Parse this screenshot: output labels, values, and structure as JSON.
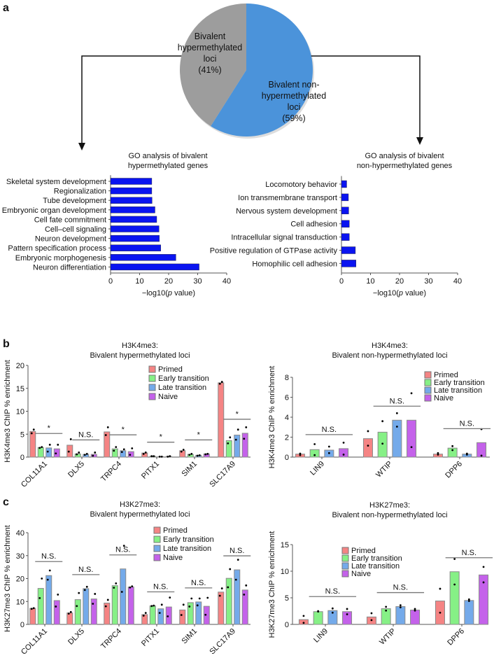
{
  "panel_labels": {
    "a": "a",
    "b": "b",
    "c": "c"
  },
  "chart_data": [
    {
      "type": "pie",
      "slices": [
        {
          "label_lines": [
            "Bivalent",
            "hypermethylated",
            "loci",
            "(41%)"
          ],
          "value": 41,
          "color": "#9d9d9d"
        },
        {
          "label_lines": [
            "Bivalent non-",
            "hypermethylated",
            "loci",
            "(59%)"
          ],
          "value": 59,
          "color": "#4b93da"
        }
      ]
    },
    {
      "type": "bar",
      "orientation": "horizontal",
      "title_lines": [
        "GO analysis of bivalent",
        "hypermethylated genes"
      ],
      "categories": [
        "Skeletal system development",
        "Regionalization",
        "Tube development",
        "Embryonic organ development",
        "Cell fate commitment",
        "Cell–cell signaling",
        "Neuron development",
        "Pattern specification process",
        "Embryonic morphogenesis",
        "Neuron differentiation"
      ],
      "values": [
        14.2,
        14.2,
        14.3,
        15.3,
        15.9,
        16.7,
        16.8,
        17.3,
        22.5,
        30.5
      ],
      "xlabel_parts": [
        "−log10(",
        "p",
        " value)"
      ],
      "xlim": [
        0,
        40
      ],
      "xticks": [
        "0",
        "10",
        "20",
        "30",
        "40"
      ],
      "color": "#0a14f0"
    },
    {
      "type": "bar",
      "orientation": "horizontal",
      "title_lines": [
        "GO analysis of bivalent",
        "non-hypermethylated genes"
      ],
      "categories": [
        "Locomotory behavior",
        "Ion transmembrane transport",
        "Nervous system development",
        "Cell adhesion",
        "Intracellular signal transduction",
        "Positive regulation of GTPase activity",
        "Homophilic cell adhesion"
      ],
      "values": [
        1.8,
        2.4,
        2.5,
        2.7,
        2.7,
        4.8,
        5.0
      ],
      "xlabel_parts": [
        "−log10(",
        "p",
        " value)"
      ],
      "xlim": [
        0,
        40
      ],
      "xticks": [
        "0",
        "10",
        "20",
        "30",
        "40"
      ],
      "color": "#0a14f0"
    },
    {
      "type": "bar",
      "title_lines": [
        "H3K4me3:",
        "Bivalent hypermethylated loci"
      ],
      "ylabel": "H3K4me3 ChIP % enrichment",
      "ylim": [
        0,
        20
      ],
      "yticks": [
        "0",
        "5",
        "10",
        "15",
        "20"
      ],
      "categories": [
        "COL11A1",
        "DLX5",
        "TRPC4",
        "PITX1",
        "SIM1",
        "SLC17A9"
      ],
      "significance": [
        "*",
        "N.S.",
        "*",
        "*",
        "*",
        "*"
      ],
      "legend_position": "top-right",
      "series": [
        {
          "name": "Primed",
          "color": "#f58484",
          "values": [
            5.6,
            2.6,
            5.5,
            0.9,
            1.4,
            16.2
          ],
          "replicates": [
            [
              5.2,
              6.0
            ],
            [
              1.2,
              3.9
            ],
            [
              4.8,
              6.5
            ],
            [
              0.7,
              1.0
            ],
            [
              1.2,
              1.6
            ],
            [
              16.0,
              16.4
            ]
          ]
        },
        {
          "name": "Early transition",
          "color": "#86f086",
          "values": [
            2.1,
            0.7,
            1.8,
            0.2,
            0.6,
            3.6
          ],
          "replicates": [
            [
              2.0,
              2.2
            ],
            [
              0.6,
              1.0
            ],
            [
              1.4,
              2.2
            ],
            [
              0.2,
              0.2
            ],
            [
              0.5,
              0.7
            ],
            [
              3.0,
              4.3
            ]
          ]
        },
        {
          "name": "Late transition",
          "color": "#74aaea",
          "values": [
            2.0,
            0.6,
            1.4,
            0.1,
            0.4,
            4.8
          ],
          "replicates": [
            [
              1.2,
              2.7
            ],
            [
              0.5,
              0.7
            ],
            [
              1.1,
              1.7
            ],
            [
              0.1,
              0.1
            ],
            [
              0.3,
              0.4
            ],
            [
              3.8,
              6.0
            ]
          ]
        },
        {
          "name": "Naive",
          "color": "#c462ea",
          "values": [
            1.8,
            0.6,
            1.2,
            0.15,
            0.7,
            5.2
          ],
          "replicates": [
            [
              0.8,
              2.7
            ],
            [
              0.3,
              1.0
            ],
            [
              0.5,
              1.9
            ],
            [
              0.1,
              0.2
            ],
            [
              0.6,
              0.7
            ],
            [
              4.0,
              6.5
            ]
          ]
        }
      ]
    },
    {
      "type": "bar",
      "title_lines": [
        "H3K4me3:",
        "Bivalent non-hypermethylated loci"
      ],
      "ylabel": "H3K4me3 ChIP % enrichment",
      "ylim": [
        0,
        8
      ],
      "yticks": [
        "0",
        "2",
        "4",
        "6",
        "8"
      ],
      "categories": [
        "LIN9",
        "WTIP",
        "DPP6"
      ],
      "significance": [
        "N.S.",
        "N.S.",
        "N.S."
      ],
      "legend_position": "top-right",
      "series": [
        {
          "name": "Primed",
          "color": "#f58484",
          "values": [
            0.3,
            1.85,
            0.3
          ],
          "replicates": [
            [
              0.2,
              0.35
            ],
            [
              1.15,
              2.6
            ],
            [
              0.25,
              0.4
            ]
          ]
        },
        {
          "name": "Early transition",
          "color": "#86f086",
          "values": [
            0.75,
            2.5,
            0.9
          ],
          "replicates": [
            [
              0.2,
              1.3
            ],
            [
              1.35,
              3.6
            ],
            [
              0.7,
              1.1
            ]
          ]
        },
        {
          "name": "Late transition",
          "color": "#74aaea",
          "values": [
            0.7,
            3.7,
            0.3
          ],
          "replicates": [
            [
              0.4,
              1.05
            ],
            [
              3.05,
              4.4
            ],
            [
              0.25,
              0.35
            ]
          ]
        },
        {
          "name": "Naive",
          "color": "#c462ea",
          "values": [
            0.85,
            3.7,
            1.45
          ],
          "replicates": [
            [
              0.25,
              1.45
            ],
            [
              1.0,
              6.4
            ],
            [
              0.15,
              2.8
            ]
          ]
        }
      ]
    },
    {
      "type": "bar",
      "title_lines": [
        "H3K27me3:",
        "Bivalent hypermethylated loci"
      ],
      "ylabel": "H3K27me3 ChIP % enrichment",
      "ylim": [
        0,
        40
      ],
      "yticks": [
        "0",
        "10",
        "20",
        "30",
        "40"
      ],
      "categories": [
        "COL11A1",
        "DLX5",
        "TRPC4",
        "PITX1",
        "SIM1",
        "SLC17A9"
      ],
      "significance": [
        "N.S.",
        "N.S.",
        "N.S.",
        "N.S.",
        "N.S.",
        "N.S."
      ],
      "legend_position": "top-right",
      "series": [
        {
          "name": "Primed",
          "color": "#f58484",
          "values": [
            7.0,
            5.0,
            9.3,
            4.3,
            6.3,
            14.1
          ],
          "replicates": [
            [
              6.8,
              7.1
            ],
            [
              4.7,
              5.4
            ],
            [
              7.9,
              10.7
            ],
            [
              3.8,
              5.0
            ],
            [
              4.1,
              8.6
            ],
            [
              12.5,
              15.7
            ]
          ]
        },
        {
          "name": "Early transition",
          "color": "#86f086",
          "values": [
            15.7,
            10.8,
            16.9,
            8.1,
            9.5,
            20.1
          ],
          "replicates": [
            [
              11.5,
              20.0
            ],
            [
              8.0,
              13.7
            ],
            [
              16.0,
              17.9
            ],
            [
              8.0,
              8.2
            ],
            [
              7.8,
              11.3
            ],
            [
              16.2,
              24.1
            ]
          ]
        },
        {
          "name": "Late transition",
          "color": "#74aaea",
          "values": [
            21.3,
            15.6,
            24.2,
            6.8,
            9.8,
            23.8
          ],
          "replicates": [
            [
              19.5,
              23.5
            ],
            [
              15.0,
              16.4
            ],
            [
              14.2,
              34.3
            ],
            [
              5.0,
              8.6
            ],
            [
              8.3,
              11.3
            ],
            [
              19.5,
              28.2
            ]
          ]
        },
        {
          "name": "Naive",
          "color": "#c462ea",
          "values": [
            10.4,
            11.1,
            16.3,
            7.6,
            7.9,
            15.0
          ],
          "replicates": [
            [
              7.8,
              13.0
            ],
            [
              9.0,
              13.3
            ],
            [
              16.1,
              16.6
            ],
            [
              3.5,
              11.7
            ],
            [
              4.2,
              11.6
            ],
            [
              13.0,
              17.0
            ]
          ]
        }
      ]
    },
    {
      "type": "bar",
      "title_lines": [
        "H3K27me3:",
        "Bivalent non-hypermethylated loci"
      ],
      "ylabel": "H3K27me3 ChIP % enrichment",
      "ylim": [
        0,
        15
      ],
      "yticks": [
        "0",
        "5",
        "10",
        "15"
      ],
      "categories": [
        "LIN9",
        "WTIP",
        "DPP6"
      ],
      "significance": [
        "N.S.",
        "N.S.",
        "N.S."
      ],
      "legend_position": "top-left",
      "series": [
        {
          "name": "Primed",
          "color": "#f58484",
          "values": [
            0.9,
            1.4,
            4.4
          ],
          "replicates": [
            [
              0.3,
              1.6
            ],
            [
              0.8,
              2.1
            ],
            [
              2.2,
              6.7
            ]
          ]
        },
        {
          "name": "Early transition",
          "color": "#86f086",
          "values": [
            2.4,
            2.95,
            9.9
          ],
          "replicates": [
            [
              2.4,
              2.5
            ],
            [
              2.6,
              3.3
            ],
            [
              7.5,
              12.3
            ]
          ]
        },
        {
          "name": "Late transition",
          "color": "#74aaea",
          "values": [
            2.6,
            3.35,
            4.5
          ],
          "replicates": [
            [
              2.2,
              3.0
            ],
            [
              3.2,
              3.6
            ],
            [
              4.4,
              4.7
            ]
          ]
        },
        {
          "name": "Naive",
          "color": "#c462ea",
          "values": [
            2.4,
            2.7,
            9.3
          ],
          "replicates": [
            [
              1.9,
              2.9
            ],
            [
              2.6,
              2.9
            ],
            [
              7.9,
              10.8
            ]
          ]
        }
      ]
    }
  ]
}
